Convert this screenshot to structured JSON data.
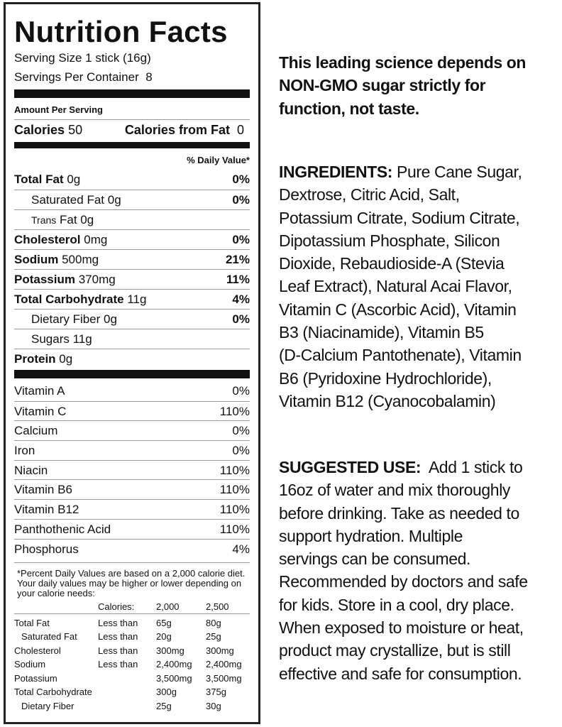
{
  "label": {
    "title": "Nutrition Facts",
    "serving_size": "Serving Size 1 stick (16g)",
    "servings_per_container": "Servings Per Container  8",
    "amount_per_serving": "Amount Per Serving",
    "calories_label": "Calories",
    "calories_value": "50",
    "calories_fat_label": "Calories from Fat",
    "calories_fat_value": "0",
    "daily_value_header": "% Daily Value*",
    "nutrients": [
      {
        "name": "Total Fat",
        "amount": "0g",
        "dv": "0%",
        "bold": true,
        "indent": false
      },
      {
        "name": "Saturated Fat",
        "amount": "0g",
        "dv": "0%",
        "bold": false,
        "indent": true
      },
      {
        "name": "Trans",
        "amount": "Fat 0g",
        "dv": "",
        "bold": false,
        "indent": true
      },
      {
        "name": "Cholesterol",
        "amount": "0mg",
        "dv": "0%",
        "bold": true,
        "indent": false
      },
      {
        "name": "Sodium",
        "amount": "500mg",
        "dv": "21%",
        "bold": true,
        "indent": false
      },
      {
        "name": "Potassium",
        "amount": "370mg",
        "dv": "11%",
        "bold": true,
        "indent": false
      },
      {
        "name": "Total Carbohydrate",
        "amount": "11g",
        "dv": "4%",
        "bold": true,
        "indent": false
      },
      {
        "name": "Dietary Fiber",
        "amount": "0g",
        "dv": "0%",
        "bold": false,
        "indent": true
      },
      {
        "name": "Sugars",
        "amount": "11g",
        "dv": "",
        "bold": false,
        "indent": true
      },
      {
        "name": "Protein",
        "amount": "0g",
        "dv": "",
        "bold": true,
        "indent": false
      }
    ],
    "vitamins": [
      {
        "name": "Vitamin A",
        "dv": "0%"
      },
      {
        "name": "Vitamin C",
        "dv": "110%"
      },
      {
        "name": "Calcium",
        "dv": "0%"
      },
      {
        "name": "Iron",
        "dv": "0%"
      },
      {
        "name": "Niacin",
        "dv": "110%"
      },
      {
        "name": "Vitamin B6",
        "dv": "110%"
      },
      {
        "name": "Vitamin B12",
        "dv": "110%"
      },
      {
        "name": "Panthothenic Acid",
        "dv": "110%"
      },
      {
        "name": "Phosphorus",
        "dv": "4%"
      }
    ],
    "footnote": "*Percent Daily Values are based on a 2,000 calorie diet. Your daily values may be higher or lower depending on your calorie needs:",
    "footnote_table": {
      "header": [
        "",
        "Calories:",
        "2,000",
        "2,500"
      ],
      "rows": [
        [
          "Total Fat",
          "Less than",
          "65g",
          "80g"
        ],
        [
          "Saturated Fat",
          "Less than",
          "20g",
          "25g"
        ],
        [
          "Cholesterol",
          "Less than",
          "300mg",
          "300mg"
        ],
        [
          "Sodium",
          "Less than",
          "2,400mg",
          "2,400mg"
        ],
        [
          "Potassium",
          "",
          "3,500mg",
          "3,500mg"
        ],
        [
          "Total Carbohydrate",
          "",
          "300g",
          "375g"
        ],
        [
          "Dietary Fiber",
          "",
          "25g",
          "30g"
        ]
      ]
    }
  },
  "intro": {
    "lines": [
      "This leading science depends on",
      "NON-GMO sugar strictly for",
      "function, not taste."
    ]
  },
  "ingredients": {
    "heading": "INGREDIENTS:",
    "lines": [
      " Pure Cane Sugar,",
      "Dextrose, Citric Acid, Salt,",
      "Potassium Citrate, Sodium Citrate,",
      "Dipotassium Phosphate, Silicon",
      "Dioxide, Rebaudioside-A (Stevia",
      "Leaf Extract), Natural Acai Flavor,",
      "Vitamin C (Ascorbic Acid), Vitamin",
      "B3 (Niacinamide), Vitamin B5",
      "(D-Calcium Pantothenate), Vitamin",
      "B6 (Pyridoxine Hydrochloride),",
      "Vitamin B12 (Cyanocobalamin)"
    ]
  },
  "suggested_use": {
    "heading": "SUGGESTED USE:",
    "lines": [
      "  Add 1 stick to",
      "16oz of water and mix thoroughly",
      "before drinking. Take as needed to",
      "support hydration. Multiple",
      "servings can be consumed.",
      "Recommended by doctors and safe",
      "for kids. Store in a cool, dry place.",
      "When exposed to moisture or heat,",
      "product may crystallize, but is still",
      "effective and safe for consumption."
    ]
  }
}
